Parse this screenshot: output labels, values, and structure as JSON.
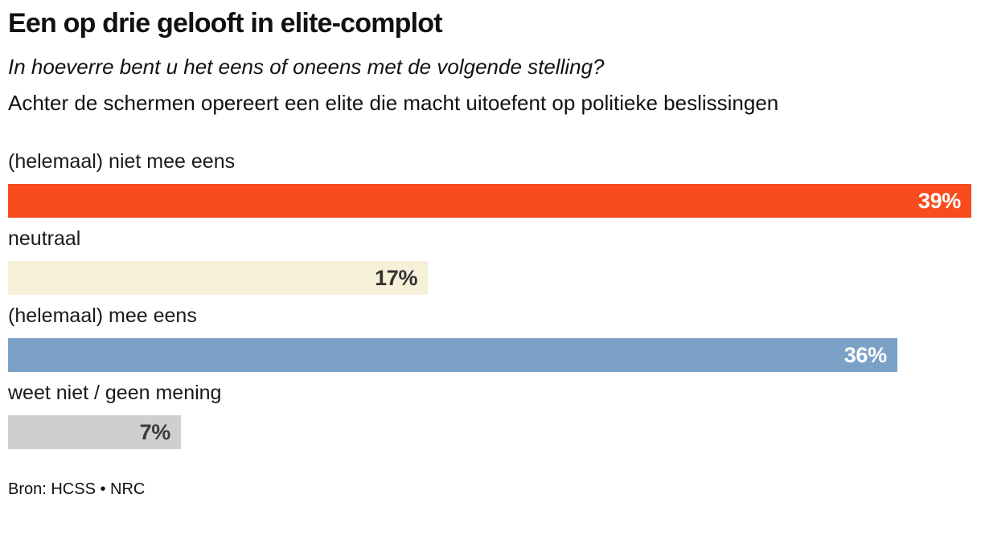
{
  "page": {
    "title": "Een op drie gelooft in elite-complot",
    "subtitle": "In hoeverre bent u het eens of oneens met de volgende stelling?",
    "statement": "Achter de schermen opereert een elite die macht uitoefent op politieke beslissingen",
    "source": "Bron: HCSS • NRC"
  },
  "colors": {
    "background": "#ffffff",
    "text": "#111111",
    "accent_orange": "#f84c1e",
    "accent_cream": "#f6f0d8",
    "accent_blue": "#7ba2c6",
    "accent_gray": "#cfcfcf"
  },
  "chart_data": {
    "type": "bar",
    "orientation": "horizontal",
    "title": "Een op drie gelooft in elite-complot",
    "subtitle": "In hoeverre bent u het eens of oneens met de volgende stelling?",
    "categories": [
      "(helemaal) niet mee eens",
      "neutraal",
      "(helemaal) mee eens",
      "weet niet / geen mening"
    ],
    "values": [
      39,
      17,
      36,
      7
    ],
    "value_labels": [
      "39%",
      "17%",
      "36%",
      "7%"
    ],
    "bar_colors": [
      "#f84c1e",
      "#f6f0d8",
      "#7ba2c6",
      "#cfcfcf"
    ],
    "value_label_colors": [
      "#ffffff",
      "#333333",
      "#ffffff",
      "#3a3a3a"
    ],
    "unit": "%",
    "xlim": [
      0,
      39
    ],
    "grid": false,
    "legend": false,
    "source": "Bron: HCSS • NRC"
  }
}
